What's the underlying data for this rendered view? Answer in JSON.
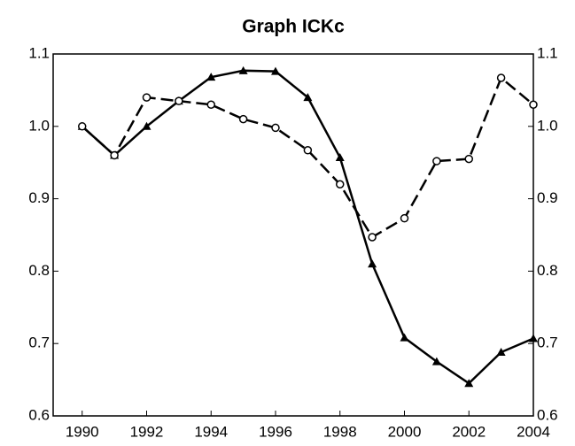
{
  "chart_data": {
    "type": "line",
    "title": "Graph ICKc",
    "x": [
      1990,
      1991,
      1992,
      1993,
      1994,
      1995,
      1996,
      1997,
      1998,
      1999,
      2000,
      2001,
      2002,
      2003,
      2004
    ],
    "series": [
      {
        "color": "#000000",
        "dashed": false,
        "marker": "triangle",
        "values": [
          1.0,
          0.96,
          1.0,
          1.035,
          1.068,
          1.077,
          1.076,
          1.04,
          0.957,
          0.81,
          0.708,
          0.675,
          0.645,
          0.688,
          0.707
        ]
      },
      {
        "color": "#000000",
        "dashed": true,
        "marker": "circle",
        "values": [
          1.0,
          0.96,
          1.04,
          1.035,
          1.03,
          1.01,
          0.998,
          0.967,
          0.92,
          0.847,
          0.873,
          0.952,
          0.955,
          1.067,
          1.03
        ]
      }
    ],
    "xlim": [
      1989.1,
      2004
    ],
    "xticks": [
      1990,
      1992,
      1994,
      1996,
      1998,
      2000,
      2002,
      2004
    ],
    "ylim": [
      0.6,
      1.1
    ],
    "yticks": [
      0.6,
      0.7,
      0.8,
      0.9,
      {
        "value": 1,
        "label": "1.0"
      },
      1.1
    ],
    "y2lim": [
      0.6,
      1.1
    ],
    "y2ticks": [
      0.6,
      0.7,
      0.8,
      0.9,
      {
        "value": 1,
        "label": "1.0"
      },
      1.1
    ],
    "grid": false
  }
}
